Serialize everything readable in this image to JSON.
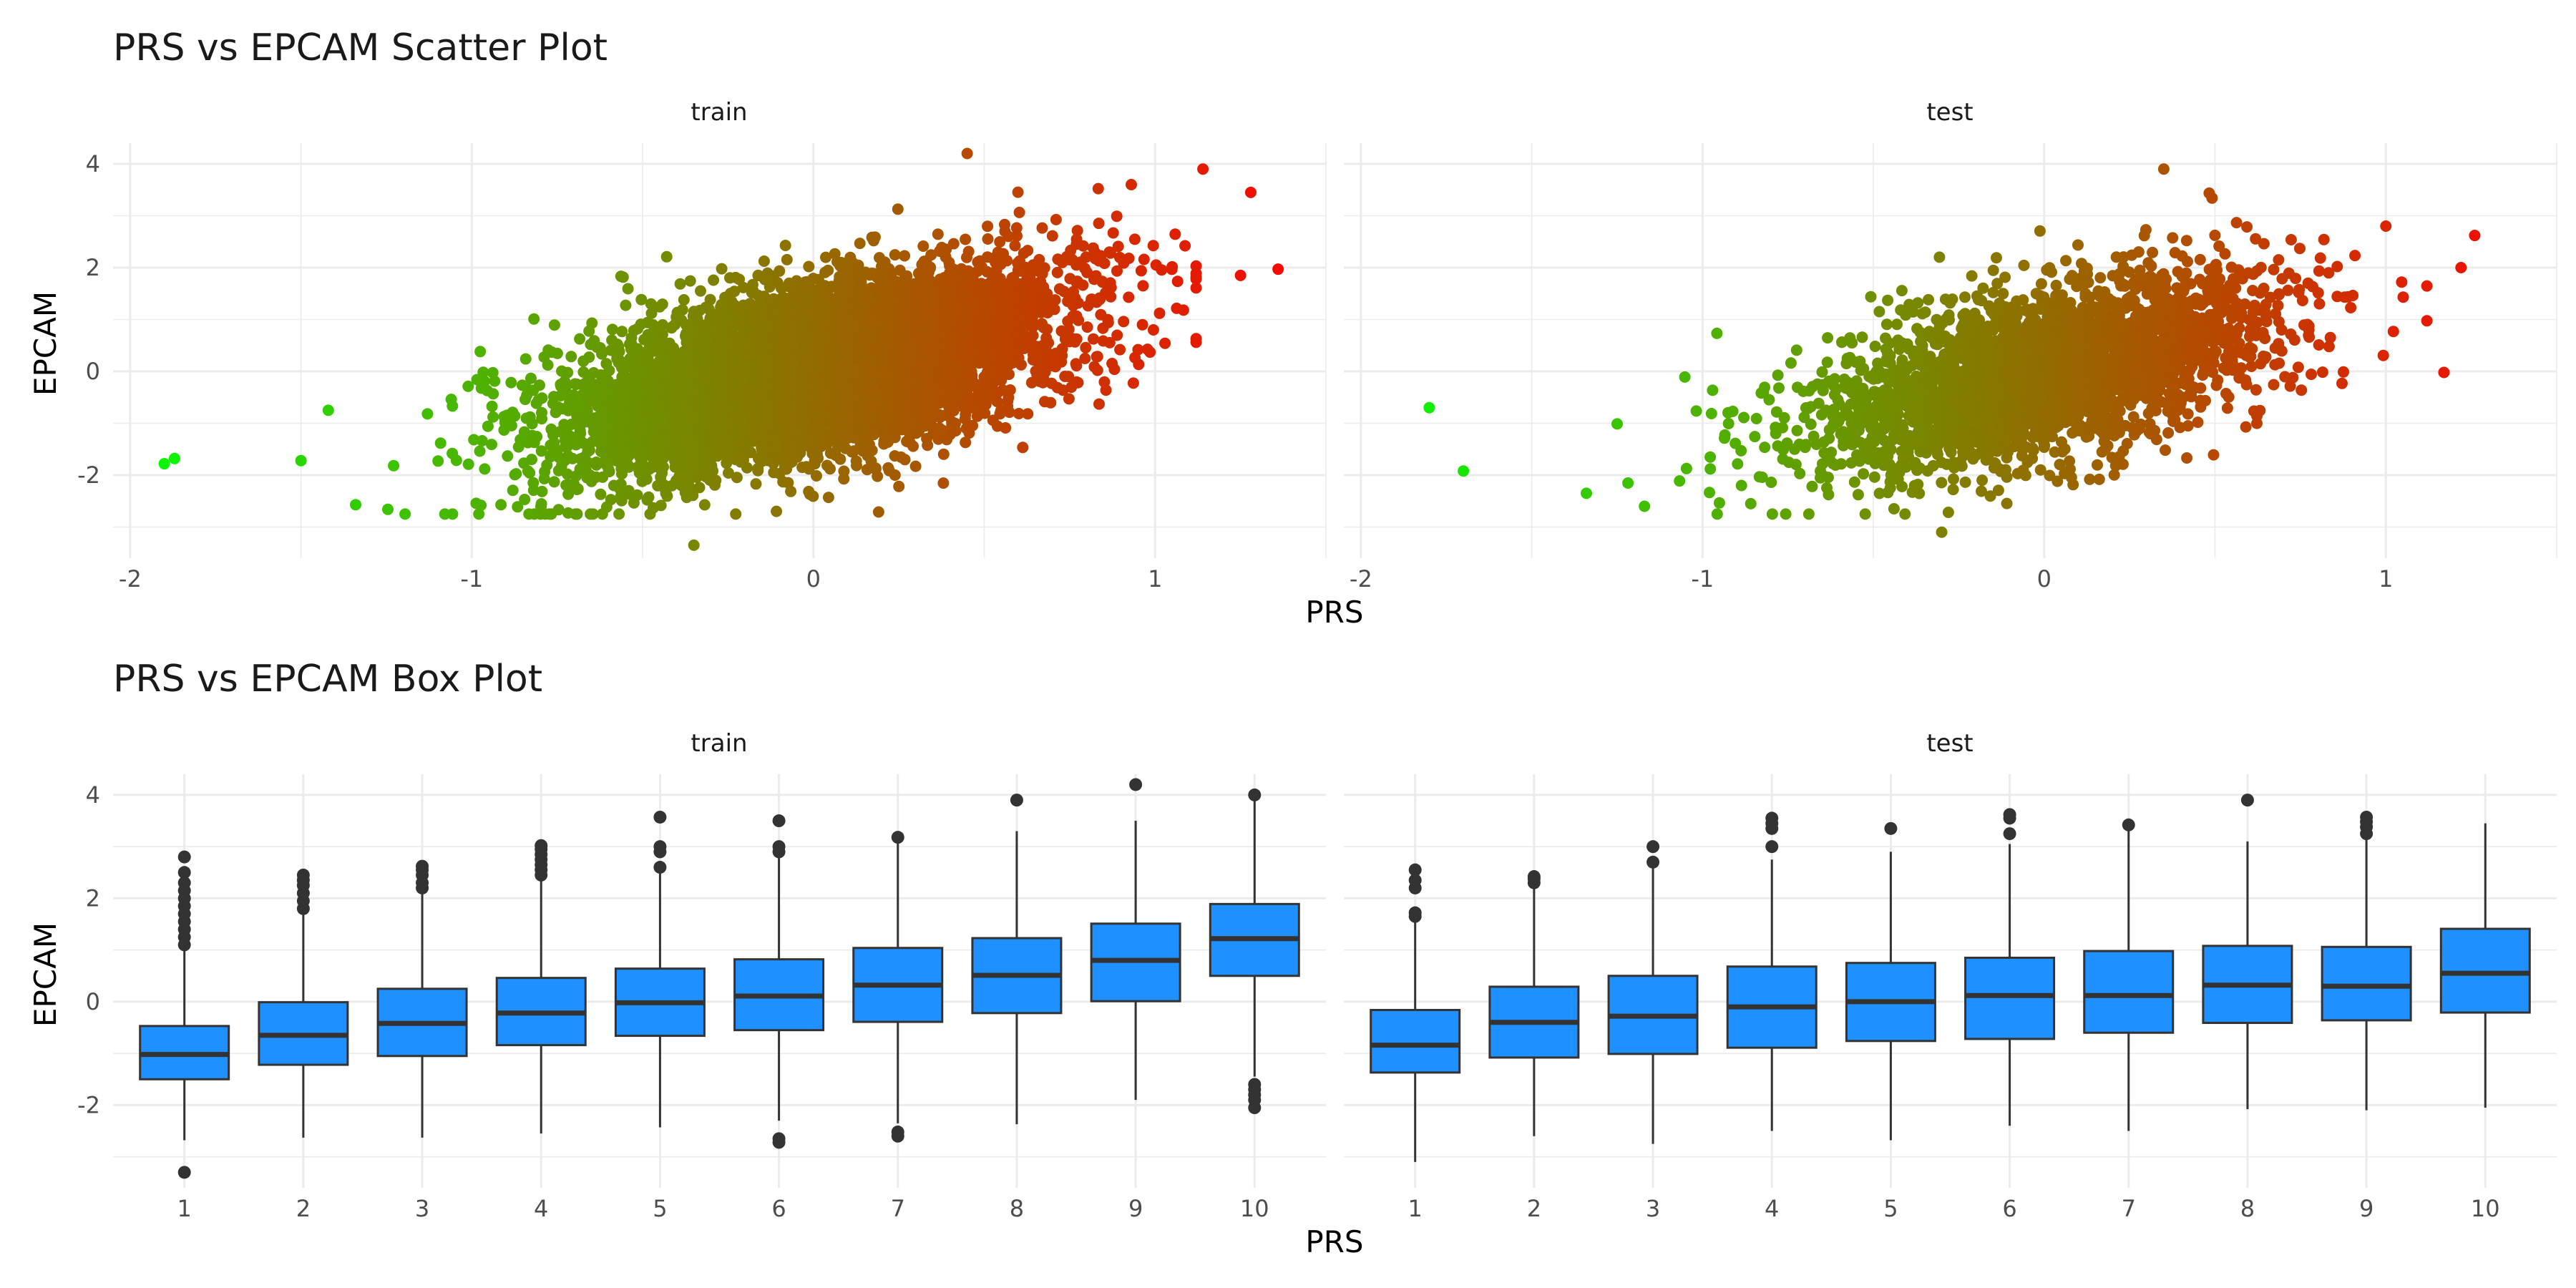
{
  "chart_data": [
    {
      "type": "scatter",
      "title": "PRS vs EPCAM Scatter Plot",
      "xlabel": "PRS",
      "ylabel": "EPCAM",
      "xlim": [
        -2.05,
        1.5
      ],
      "ylim": [
        -3.6,
        4.4
      ],
      "x_ticks": [
        "-2",
        "-1",
        "0",
        "1"
      ],
      "y_ticks": [
        "-2",
        "0",
        "2",
        "4"
      ],
      "grid": true,
      "legend": "none",
      "color_by": "PRS",
      "color_scale": [
        "#00ff00",
        "#ff0000"
      ],
      "panels": [
        {
          "name": "train",
          "n_points": 6000,
          "cloud": {
            "x_mean": 0.0,
            "x_sd": 0.36,
            "slope": 1.5,
            "intercept": 0.0,
            "resid_sd": 0.82
          },
          "outliers": [
            [
              -1.9,
              -1.78
            ],
            [
              -1.87,
              -1.68
            ],
            [
              -1.5,
              -1.72
            ],
            [
              -1.42,
              -0.75
            ],
            [
              -1.34,
              -2.57
            ],
            [
              -0.35,
              -3.35
            ],
            [
              0.45,
              4.2
            ],
            [
              1.28,
              3.45
            ],
            [
              1.36,
              1.97
            ],
            [
              1.14,
              3.9
            ],
            [
              1.25,
              1.85
            ]
          ]
        },
        {
          "name": "test",
          "n_points": 3000,
          "cloud": {
            "x_mean": 0.0,
            "x_sd": 0.34,
            "slope": 1.5,
            "intercept": 0.0,
            "resid_sd": 0.8
          },
          "outliers": [
            [
              -1.8,
              -0.7
            ],
            [
              -1.7,
              -1.92
            ],
            [
              -1.34,
              -2.35
            ],
            [
              -1.17,
              -2.6
            ],
            [
              -0.3,
              -3.1
            ],
            [
              0.35,
              3.9
            ],
            [
              1.26,
              2.62
            ],
            [
              1.22,
              2.0
            ],
            [
              1.17,
              -0.02
            ],
            [
              1.0,
              2.8
            ]
          ]
        }
      ]
    },
    {
      "type": "box",
      "title": "PRS vs EPCAM Box Plot",
      "xlabel": "PRS",
      "ylabel": "EPCAM",
      "ylim": [
        -3.6,
        4.4
      ],
      "y_ticks": [
        "-2",
        "0",
        "2",
        "4"
      ],
      "categories": [
        "1",
        "2",
        "3",
        "4",
        "5",
        "6",
        "7",
        "8",
        "9",
        "10"
      ],
      "fill": "#1e90ff",
      "grid": true,
      "legend": "none",
      "panels": [
        {
          "name": "train",
          "boxes": [
            {
              "q1": -1.5,
              "median": -1.02,
              "q3": -0.47,
              "lo": -2.68,
              "hi": 1.05
            },
            {
              "q1": -1.22,
              "median": -0.65,
              "q3": -0.01,
              "lo": -2.63,
              "hi": 1.75
            },
            {
              "q1": -1.05,
              "median": -0.42,
              "q3": 0.25,
              "lo": -2.63,
              "hi": 2.15
            },
            {
              "q1": -0.84,
              "median": -0.22,
              "q3": 0.46,
              "lo": -2.55,
              "hi": 2.4
            },
            {
              "q1": -0.66,
              "median": -0.02,
              "q3": 0.64,
              "lo": -2.43,
              "hi": 2.6
            },
            {
              "q1": -0.55,
              "median": 0.11,
              "q3": 0.82,
              "lo": -2.3,
              "hi": 2.85
            },
            {
              "q1": -0.39,
              "median": 0.32,
              "q3": 1.04,
              "lo": -2.35,
              "hi": 3.15
            },
            {
              "q1": -0.22,
              "median": 0.51,
              "q3": 1.23,
              "lo": -2.37,
              "hi": 3.3
            },
            {
              "q1": 0.01,
              "median": 0.8,
              "q3": 1.51,
              "lo": -1.9,
              "hi": 3.5
            },
            {
              "q1": 0.5,
              "median": 1.22,
              "q3": 1.89,
              "lo": -1.45,
              "hi": 3.95
            }
          ],
          "outliers": [
            [
              1,
              -3.3
            ],
            [
              1,
              1.1
            ],
            [
              1,
              1.25
            ],
            [
              1,
              1.4
            ],
            [
              1,
              1.55
            ],
            [
              1,
              1.7
            ],
            [
              1,
              1.85
            ],
            [
              1,
              2.0
            ],
            [
              1,
              2.15
            ],
            [
              1,
              2.3
            ],
            [
              1,
              2.5
            ],
            [
              1,
              2.8
            ],
            [
              2,
              1.8
            ],
            [
              2,
              1.95
            ],
            [
              2,
              2.1
            ],
            [
              2,
              2.25
            ],
            [
              2,
              2.35
            ],
            [
              2,
              2.45
            ],
            [
              3,
              2.2
            ],
            [
              3,
              2.3
            ],
            [
              3,
              2.45
            ],
            [
              3,
              2.55
            ],
            [
              3,
              2.62
            ],
            [
              4,
              2.45
            ],
            [
              4,
              2.55
            ],
            [
              4,
              2.65
            ],
            [
              4,
              2.75
            ],
            [
              4,
              2.85
            ],
            [
              4,
              2.95
            ],
            [
              4,
              3.02
            ],
            [
              5,
              2.6
            ],
            [
              5,
              2.9
            ],
            [
              5,
              3.0
            ],
            [
              5,
              3.57
            ],
            [
              6,
              -2.65
            ],
            [
              6,
              -2.72
            ],
            [
              6,
              2.9
            ],
            [
              6,
              3.0
            ],
            [
              6,
              3.5
            ],
            [
              7,
              -2.52
            ],
            [
              7,
              -2.6
            ],
            [
              7,
              3.18
            ],
            [
              8,
              3.9
            ],
            [
              9,
              4.2
            ],
            [
              10,
              -1.6
            ],
            [
              10,
              -1.7
            ],
            [
              10,
              -1.8
            ],
            [
              10,
              -1.9
            ],
            [
              10,
              -2.05
            ],
            [
              10,
              4.0
            ]
          ]
        },
        {
          "name": "test",
          "boxes": [
            {
              "q1": -1.37,
              "median": -0.84,
              "q3": -0.16,
              "lo": -3.1,
              "hi": 1.6
            },
            {
              "q1": -1.08,
              "median": -0.4,
              "q3": 0.29,
              "lo": -2.6,
              "hi": 2.3
            },
            {
              "q1": -1.01,
              "median": -0.28,
              "q3": 0.5,
              "lo": -2.75,
              "hi": 2.7
            },
            {
              "q1": -0.89,
              "median": -0.1,
              "q3": 0.68,
              "lo": -2.5,
              "hi": 2.75
            },
            {
              "q1": -0.76,
              "median": 0.0,
              "q3": 0.75,
              "lo": -2.68,
              "hi": 2.9
            },
            {
              "q1": -0.72,
              "median": 0.12,
              "q3": 0.85,
              "lo": -2.4,
              "hi": 3.05
            },
            {
              "q1": -0.6,
              "median": 0.12,
              "q3": 0.98,
              "lo": -2.5,
              "hi": 3.4
            },
            {
              "q1": -0.41,
              "median": 0.32,
              "q3": 1.08,
              "lo": -2.08,
              "hi": 3.1
            },
            {
              "q1": -0.36,
              "median": 0.3,
              "q3": 1.06,
              "lo": -2.1,
              "hi": 3.15
            },
            {
              "q1": -0.21,
              "median": 0.55,
              "q3": 1.41,
              "lo": -2.05,
              "hi": 3.45
            }
          ],
          "outliers": [
            [
              1,
              1.65
            ],
            [
              1,
              1.72
            ],
            [
              1,
              2.2
            ],
            [
              1,
              2.35
            ],
            [
              1,
              2.55
            ],
            [
              2,
              2.3
            ],
            [
              2,
              2.38
            ],
            [
              2,
              2.42
            ],
            [
              3,
              2.7
            ],
            [
              3,
              3.0
            ],
            [
              4,
              3.0
            ],
            [
              4,
              3.35
            ],
            [
              4,
              3.45
            ],
            [
              4,
              3.55
            ],
            [
              5,
              3.35
            ],
            [
              6,
              3.25
            ],
            [
              6,
              3.55
            ],
            [
              6,
              3.62
            ],
            [
              7,
              3.42
            ],
            [
              8,
              3.9
            ],
            [
              9,
              3.25
            ],
            [
              9,
              3.38
            ],
            [
              9,
              3.48
            ],
            [
              9,
              3.57
            ]
          ]
        }
      ]
    }
  ]
}
